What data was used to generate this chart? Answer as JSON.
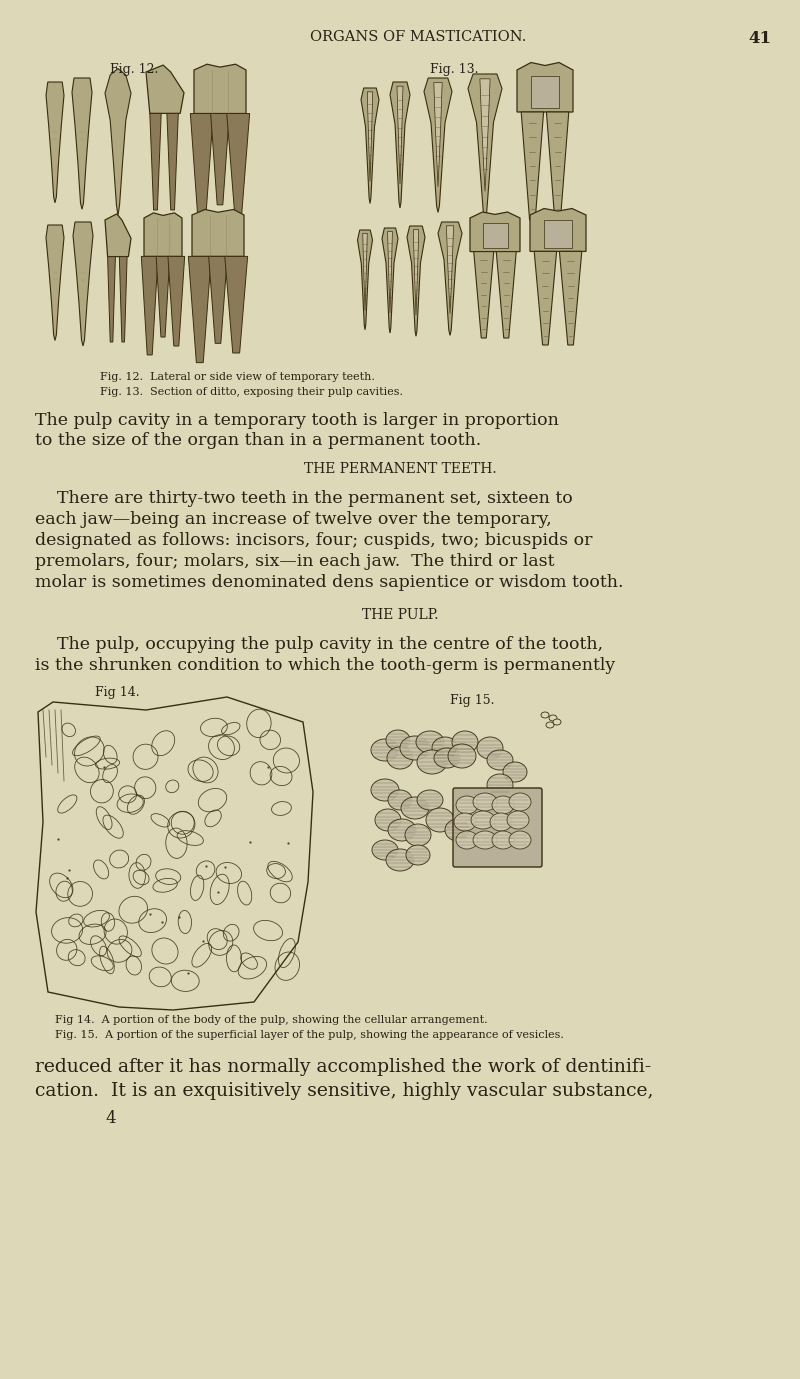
{
  "bg_color": "#ddd9b8",
  "text_color": "#2a2015",
  "header_text": "ORGANS OF MASTICATION.",
  "header_page_num": "41",
  "fig12_label": "Fig. 12.",
  "fig13_label": "Fig. 13.",
  "fig14_label": "Fig 14.",
  "fig15_label": "Fig 15.",
  "caption_12": "Fig. 12.  Lateral or side view of temporary teeth.",
  "caption_13": "Fig. 13.  Section of ditto, exposing their pulp cavities.",
  "italic_line1": "The pulp cavity in a temporary tooth is larger in proportion",
  "italic_line2": "to the size of the organ than in a permanent tooth.",
  "section_head1": "THE PERMANENT TEETH.",
  "para1_lines": [
    "    There are thirty-two teeth in the permanent set, sixteen to",
    "each jaw—being an increase of twelve over the temporary,",
    "designated as follows: incisors, four; cuspids, two; bicuspids or",
    "premolars, four; molars, six—in each jaw.  The third or last",
    "molar is sometimes denominated dens sapientice or wisdom tooth."
  ],
  "section_head2": "THE PULP.",
  "para2_lines": [
    "    The pulp, occupying the pulp cavity in the centre of the tooth,",
    "is the shrunken condition to which the tooth-germ is permanently"
  ],
  "fig14_caption1": "Fig 14.  A portion of the body of the pulp, showing the cellular arrangement.",
  "fig14_caption2": "Fig. 15.  A portion of the superficial layer of the pulp, showing the appearance of vesicles.",
  "para3_lines": [
    "reduced after it has normally accomplished the work of dentinifi-",
    "cation.  It is an exquisitively sensitive, highly vascular substance,"
  ],
  "page_num_bottom": "4",
  "teeth_color": "#b0a880",
  "teeth_dark": "#3a2e10",
  "teeth_mid": "#8a7a58"
}
